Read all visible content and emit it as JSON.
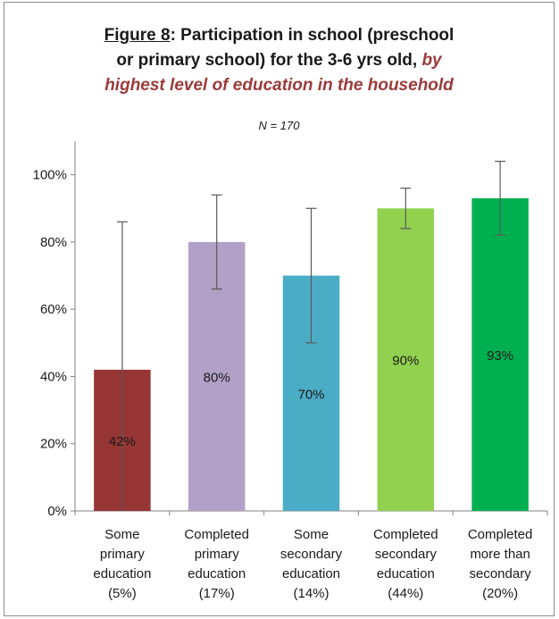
{
  "title": {
    "figure_label": "Figure 8",
    "main_line1": ": Participation in school (preschool",
    "main_line2": "or primary school) for the 3-6 yrs old, ",
    "emphasis": "by highest level of education in the household"
  },
  "subtitle": "N = 170",
  "colors": {
    "some_primary": "#963634",
    "completed_primary": "#b1a0c7",
    "some_secondary": "#4bacc6",
    "completed_secondary": "#92d050",
    "completed_more": "#00b050",
    "axis": "#808080",
    "error_bar": "#595959"
  },
  "chart_data": {
    "type": "bar",
    "categories": [
      [
        "Some",
        "primary",
        "education",
        "(5%)"
      ],
      [
        "Completed",
        "primary",
        "education",
        "(17%)"
      ],
      [
        "Some",
        "secondary",
        "education",
        "(14%)"
      ],
      [
        "Completed",
        "secondary",
        "education",
        "(44%)"
      ],
      [
        "Completed",
        "more than",
        "secondary",
        "(20%)"
      ]
    ],
    "values": [
      42,
      80,
      70,
      90,
      93
    ],
    "data_labels": [
      "42%",
      "80%",
      "70%",
      "90%",
      "93%"
    ],
    "error_low": [
      0,
      66,
      50,
      84,
      82
    ],
    "error_high": [
      86,
      94,
      90,
      96,
      104
    ],
    "yticks": [
      0,
      20,
      40,
      60,
      80,
      100
    ],
    "ytick_labels": [
      "0%",
      "20%",
      "40%",
      "60%",
      "80%",
      "100%"
    ],
    "ylim": [
      0,
      110
    ],
    "grid": false,
    "legend": "none"
  }
}
